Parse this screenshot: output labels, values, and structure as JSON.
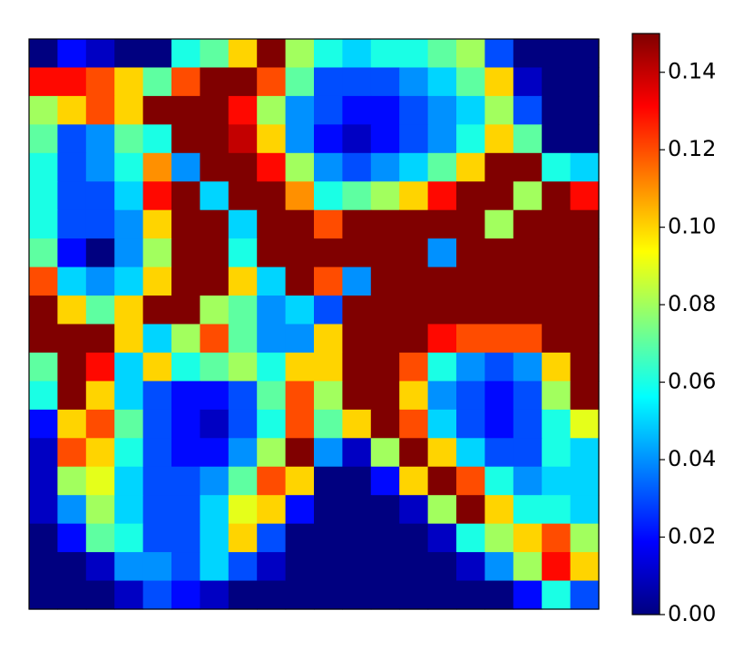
{
  "chart_data": {
    "type": "heatmap",
    "colormap": "jet",
    "clim": [
      0,
      0.15
    ],
    "colorbar_ticks": [
      {
        "value": 0,
        "label": "0.00"
      },
      {
        "value": 0.02,
        "label": "0.02"
      },
      {
        "value": 0.04,
        "label": "0.04"
      },
      {
        "value": 0.06,
        "label": "0.06"
      },
      {
        "value": 0.08,
        "label": "0.08"
      },
      {
        "value": 0.1,
        "label": "0.10"
      },
      {
        "value": 0.12,
        "label": "0.12"
      },
      {
        "value": 0.14,
        "label": "0.14"
      }
    ],
    "values": [
      [
        0,
        0.02,
        0.01,
        0,
        0,
        0.06,
        0.07,
        0.1,
        0.15,
        0.08,
        0.06,
        0.05,
        0.06,
        0.06,
        0.07,
        0.08,
        0.03,
        0,
        0,
        0
      ],
      [
        0.13,
        0.13,
        0.12,
        0.1,
        0.07,
        0.12,
        0.15,
        0.15,
        0.12,
        0.07,
        0.03,
        0.03,
        0.03,
        0.04,
        0.05,
        0.07,
        0.1,
        0.01,
        0,
        0
      ],
      [
        0.08,
        0.1,
        0.12,
        0.1,
        0.15,
        0.15,
        0.15,
        0.13,
        0.08,
        0.04,
        0.03,
        0.02,
        0.02,
        0.03,
        0.04,
        0.05,
        0.08,
        0.03,
        0,
        0
      ],
      [
        0.07,
        0.03,
        0.04,
        0.07,
        0.06,
        0.15,
        0.15,
        0.14,
        0.1,
        0.04,
        0.02,
        0.01,
        0.02,
        0.03,
        0.04,
        0.06,
        0.1,
        0.07,
        0,
        0
      ],
      [
        0.06,
        0.03,
        0.04,
        0.06,
        0.11,
        0.04,
        0.15,
        0.15,
        0.13,
        0.08,
        0.04,
        0.03,
        0.04,
        0.05,
        0.07,
        0.1,
        0.15,
        0.15,
        0.06,
        0.05
      ],
      [
        0.06,
        0.03,
        0.03,
        0.05,
        0.13,
        0.15,
        0.05,
        0.15,
        0.15,
        0.11,
        0.06,
        0.07,
        0.08,
        0.1,
        0.13,
        0.15,
        0.15,
        0.08,
        0.15,
        0.13
      ],
      [
        0.06,
        0.03,
        0.03,
        0.04,
        0.1,
        0.15,
        0.15,
        0.05,
        0.15,
        0.15,
        0.12,
        0.15,
        0.15,
        0.15,
        0.15,
        0.15,
        0.08,
        0.15,
        0.15,
        0.15
      ],
      [
        0.07,
        0.02,
        0,
        0.04,
        0.08,
        0.15,
        0.15,
        0.06,
        0.15,
        0.15,
        0.15,
        0.15,
        0.15,
        0.15,
        0.04,
        0.15,
        0.15,
        0.15,
        0.15,
        0.15
      ],
      [
        0.12,
        0.05,
        0.04,
        0.05,
        0.1,
        0.15,
        0.15,
        0.1,
        0.05,
        0.15,
        0.12,
        0.04,
        0.15,
        0.15,
        0.15,
        0.15,
        0.15,
        0.15,
        0.15,
        0.15
      ],
      [
        0.15,
        0.1,
        0.07,
        0.1,
        0.15,
        0.15,
        0.08,
        0.07,
        0.04,
        0.05,
        0.03,
        0.15,
        0.15,
        0.15,
        0.15,
        0.15,
        0.15,
        0.15,
        0.15,
        0.15
      ],
      [
        0.15,
        0.15,
        0.15,
        0.1,
        0.05,
        0.08,
        0.12,
        0.07,
        0.04,
        0.04,
        0.1,
        0.15,
        0.15,
        0.15,
        0.13,
        0.12,
        0.12,
        0.12,
        0.15,
        0.15
      ],
      [
        0.07,
        0.15,
        0.13,
        0.05,
        0.1,
        0.06,
        0.07,
        0.08,
        0.06,
        0.1,
        0.1,
        0.15,
        0.15,
        0.12,
        0.06,
        0.04,
        0.03,
        0.04,
        0.1,
        0.15
      ],
      [
        0.06,
        0.15,
        0.1,
        0.05,
        0.03,
        0.02,
        0.02,
        0.03,
        0.07,
        0.12,
        0.08,
        0.15,
        0.15,
        0.1,
        0.04,
        0.03,
        0.02,
        0.03,
        0.08,
        0.15
      ],
      [
        0.02,
        0.1,
        0.12,
        0.07,
        0.03,
        0.02,
        0.01,
        0.03,
        0.06,
        0.12,
        0.07,
        0.1,
        0.15,
        0.12,
        0.05,
        0.03,
        0.02,
        0.03,
        0.06,
        0.09
      ],
      [
        0.01,
        0.12,
        0.1,
        0.06,
        0.03,
        0.02,
        0.02,
        0.04,
        0.08,
        0.15,
        0.04,
        0.01,
        0.08,
        0.15,
        0.1,
        0.05,
        0.03,
        0.03,
        0.06,
        0.05
      ],
      [
        0.01,
        0.08,
        0.09,
        0.05,
        0.03,
        0.03,
        0.04,
        0.07,
        0.12,
        0.1,
        0,
        0,
        0.02,
        0.1,
        0.15,
        0.12,
        0.06,
        0.04,
        0.05,
        0.05
      ],
      [
        0.01,
        0.04,
        0.08,
        0.05,
        0.03,
        0.03,
        0.05,
        0.09,
        0.1,
        0.02,
        0,
        0,
        0,
        0.01,
        0.08,
        0.15,
        0.1,
        0.06,
        0.06,
        0.05
      ],
      [
        0,
        0.02,
        0.07,
        0.06,
        0.03,
        0.03,
        0.05,
        0.1,
        0.03,
        0,
        0,
        0,
        0,
        0,
        0.01,
        0.06,
        0.08,
        0.1,
        0.12,
        0.08
      ],
      [
        0,
        0,
        0.01,
        0.04,
        0.04,
        0.03,
        0.05,
        0.03,
        0.01,
        0,
        0,
        0,
        0,
        0,
        0,
        0.01,
        0.04,
        0.08,
        0.13,
        0.1
      ],
      [
        0,
        0,
        0,
        0.01,
        0.03,
        0.02,
        0.01,
        0,
        0,
        0,
        0,
        0,
        0,
        0,
        0,
        0,
        0,
        0.02,
        0.06,
        0.03
      ]
    ]
  }
}
